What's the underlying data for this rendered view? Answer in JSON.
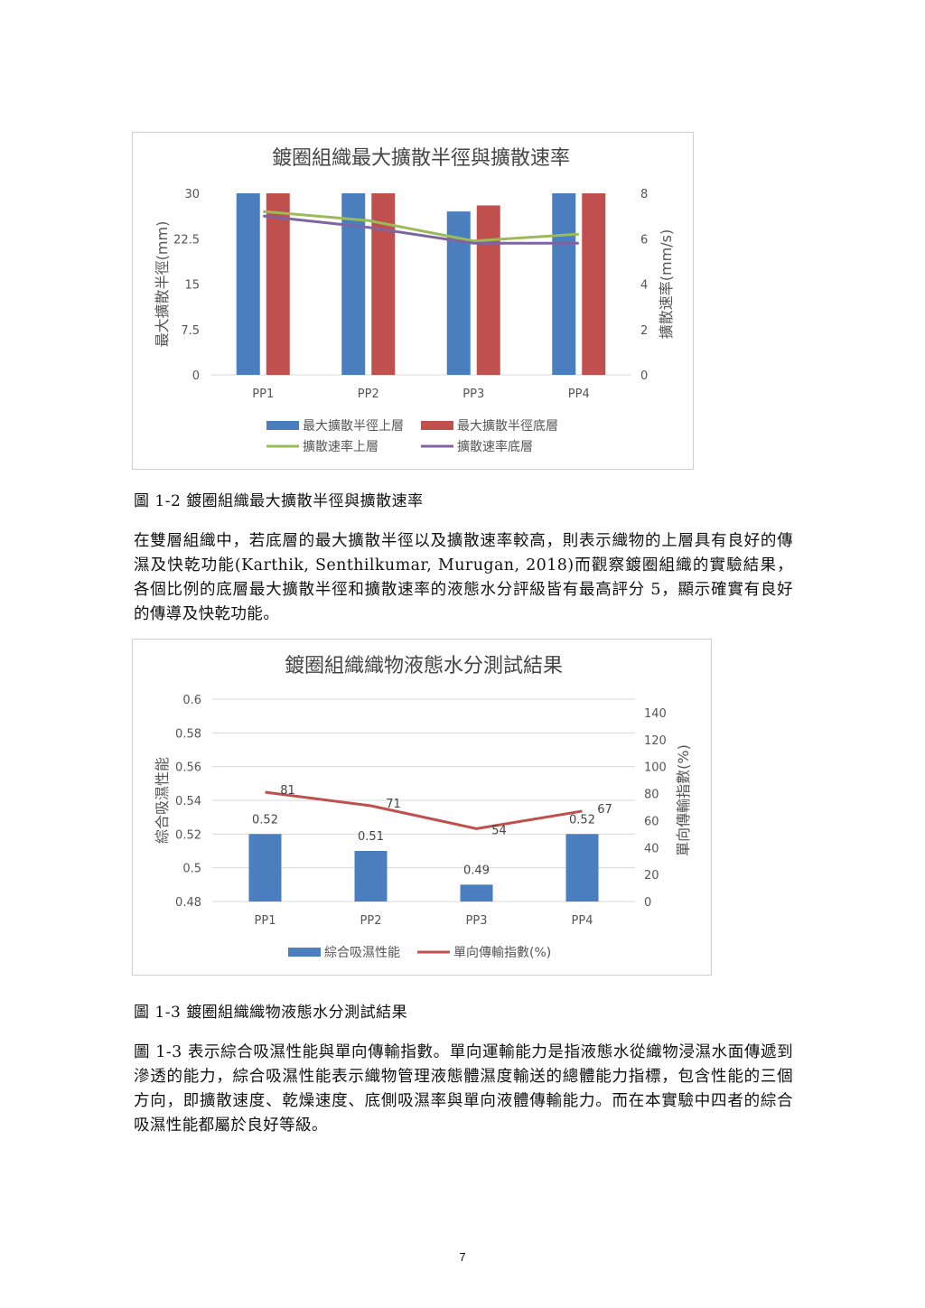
{
  "chart_data": [
    {
      "type": "bar",
      "title": "鍍圈組織最大擴散半徑與擴散速率",
      "categories": [
        "PP1",
        "PP2",
        "PP3",
        "PP4"
      ],
      "ylabel": "最大擴散半徑(mm)",
      "y2label": "擴散速率(mm/s)",
      "ylim": [
        0,
        30
      ],
      "y2lim": [
        0,
        8
      ],
      "y_ticks": [
        "0",
        "7.5",
        "15",
        "22.5",
        "30"
      ],
      "y2_ticks": [
        "0",
        "2",
        "4",
        "6",
        "8"
      ],
      "series": [
        {
          "name": "最大擴散半徑上層",
          "type": "bar",
          "axis": "left",
          "color": "#4a7ebf",
          "values": [
            30,
            30,
            27,
            30
          ]
        },
        {
          "name": "最大擴散半徑底層",
          "type": "bar",
          "axis": "left",
          "color": "#c0504d",
          "values": [
            30,
            30,
            28,
            30
          ]
        },
        {
          "name": "擴散速率上層",
          "type": "line",
          "axis": "right",
          "color": "#9bbb59",
          "values": [
            7.2,
            6.8,
            5.9,
            6.2
          ]
        },
        {
          "name": "擴散速率底層",
          "type": "line",
          "axis": "right",
          "color": "#8064a2",
          "values": [
            7.0,
            6.5,
            5.8,
            5.8
          ]
        }
      ],
      "grid": false,
      "legend": "bottom"
    },
    {
      "type": "bar",
      "title": "鍍圈組織織物液態水分測試結果",
      "categories": [
        "PP1",
        "PP2",
        "PP3",
        "PP4"
      ],
      "ylabel": "綜合吸濕性能",
      "y2label": "單向傳輸指數(%)",
      "ylim": [
        0.48,
        0.6
      ],
      "y2lim": [
        0,
        150
      ],
      "y_ticks": [
        "0.48",
        "0.5",
        "0.52",
        "0.54",
        "0.56",
        "0.58",
        "0.6"
      ],
      "y2_ticks": [
        "0",
        "20",
        "40",
        "60",
        "80",
        "100",
        "120",
        "140"
      ],
      "series": [
        {
          "name": "綜合吸濕性能",
          "type": "bar",
          "axis": "left",
          "color": "#4a7ebf",
          "values": [
            0.52,
            0.51,
            0.49,
            0.52
          ],
          "labels": [
            "0.52",
            "0.51",
            "0.49",
            "0.52"
          ]
        },
        {
          "name": "單向傳輸指數(%)",
          "type": "line",
          "axis": "right",
          "color": "#c0504d",
          "values": [
            81,
            71,
            54,
            67
          ],
          "labels": [
            "81",
            "71",
            "54",
            "67"
          ]
        }
      ],
      "grid": true,
      "legend": "bottom"
    }
  ],
  "figure2_caption": "圖 1-2 鍍圈組織最大擴散半徑與擴散速率",
  "paragraph1": "在雙層組織中，若底層的最大擴散半徑以及擴散速率較高，則表示織物的上層具有良好的傳濕及快乾功能(Karthik, Senthilkumar, Murugan, 2018)而觀察鍍圈組織的實驗結果，各個比例的底層最大擴散半徑和擴散速率的液態水分評級皆有最高評分 5，顯示確實有良好的傳導及快乾功能。",
  "figure3_caption": "圖 1-3 鍍圈組織織物液態水分測試結果",
  "paragraph2": "圖 1-3 表示綜合吸濕性能與單向傳輸指數。單向運輸能力是指液態水從織物浸濕水面傳遞到滲透的能力，綜合吸濕性能表示織物管理液態體濕度輸送的總體能力指標，包含性能的三個方向，即擴散速度、乾燥速度、底側吸濕率與單向液體傳輸能力。而在本實驗中四者的綜合吸濕性能都屬於良好等級。",
  "page_number": "7"
}
